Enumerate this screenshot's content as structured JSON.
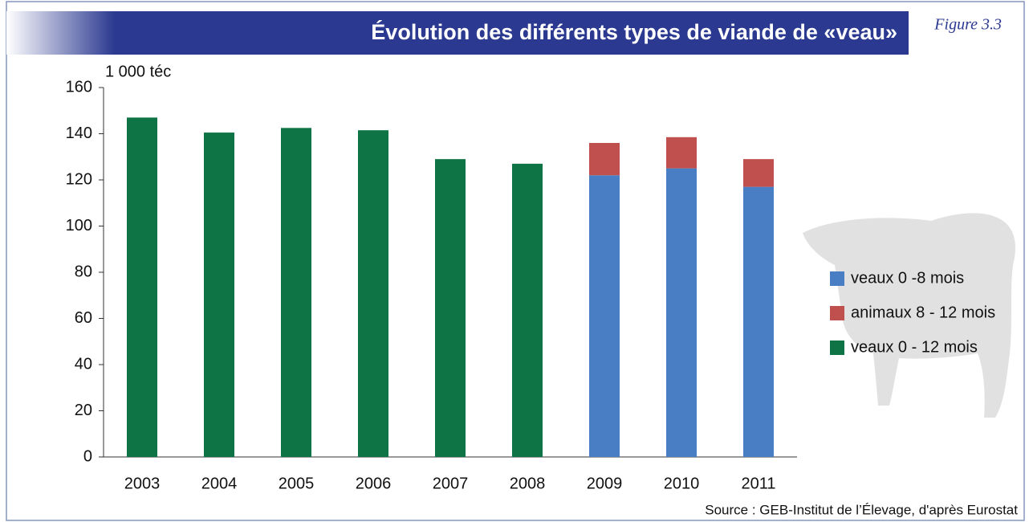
{
  "chart_data": {
    "type": "stacked_bar",
    "title": "Évolution des différents types de viande de «veau»",
    "figure_label": "Figure 3.3",
    "y_axis_label": "1 000 téc",
    "source": "Source : GEB-Institut de l’Élevage, d'après Eurostat",
    "categories": [
      "2003",
      "2004",
      "2005",
      "2006",
      "2007",
      "2008",
      "2009",
      "2010",
      "2011"
    ],
    "series": [
      {
        "name": "veaux 0 -8 mois",
        "color": "#4a7ec4",
        "values": [
          null,
          null,
          null,
          null,
          null,
          null,
          122,
          125,
          117
        ]
      },
      {
        "name": "animaux 8 - 12 mois",
        "color": "#c0504d",
        "values": [
          null,
          null,
          null,
          null,
          null,
          null,
          14,
          13.5,
          12
        ]
      },
      {
        "name": "veaux 0 - 12 mois",
        "color": "#0f7445",
        "values": [
          147,
          140.5,
          142.5,
          141.5,
          129,
          127,
          null,
          null,
          null
        ]
      }
    ],
    "ylim": [
      0,
      160
    ],
    "yticks": [
      0,
      20,
      40,
      60,
      80,
      100,
      120,
      140,
      160
    ],
    "legend": "right"
  }
}
